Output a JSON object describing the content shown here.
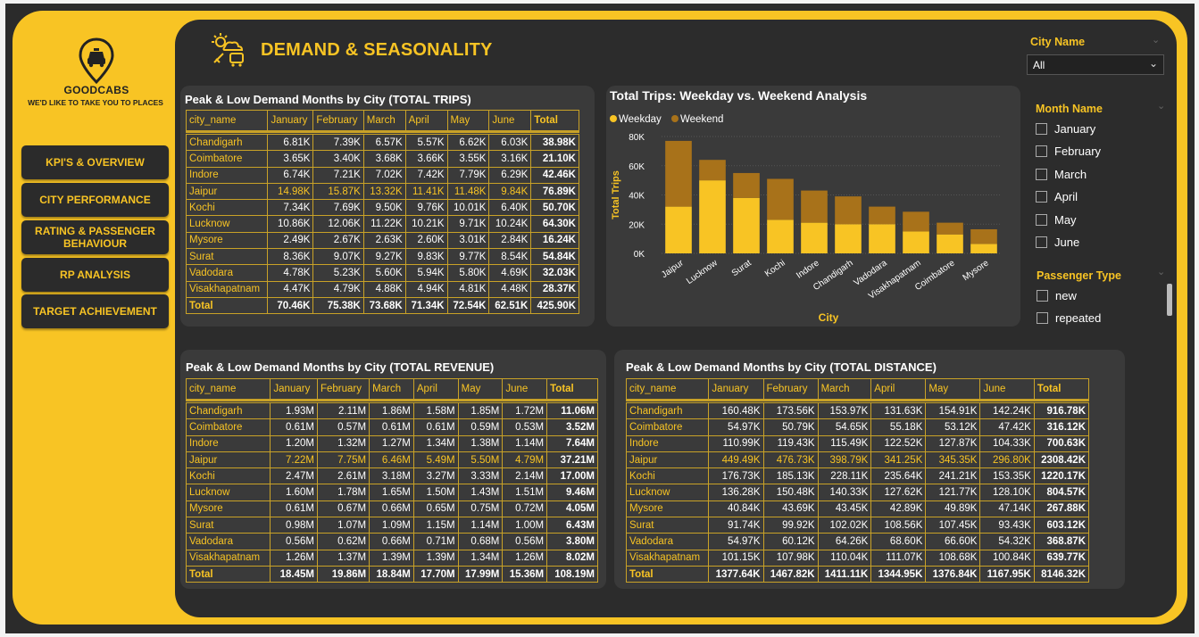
{
  "brand": {
    "name": "GOODCABS",
    "tagline": "WE'D LIKE TO TAKE YOU TO PLACES"
  },
  "nav": [
    "KPI'S & OVERVIEW",
    "CITY PERFORMANCE",
    "RATING & PASSENGER BEHAVIOUR",
    "RP ANALYSIS",
    "TARGET ACHIEVEMENT"
  ],
  "header": {
    "title": "DEMAND & SEASONALITY"
  },
  "colors": {
    "accent": "#f8c424",
    "weekend": "#a8721a",
    "panel": "#3a3a3a"
  },
  "trips": {
    "title": "Peak & Low Demand Months by City (TOTAL TRIPS)",
    "columns": [
      "city_name",
      "January",
      "February",
      "March",
      "April",
      "May",
      "June",
      "Total"
    ],
    "rows": [
      [
        "Chandigarh",
        "6.81K",
        "7.39K",
        "6.57K",
        "5.57K",
        "6.62K",
        "6.03K",
        "38.98K"
      ],
      [
        "Coimbatore",
        "3.65K",
        "3.40K",
        "3.68K",
        "3.66K",
        "3.55K",
        "3.16K",
        "21.10K"
      ],
      [
        "Indore",
        "6.74K",
        "7.21K",
        "7.02K",
        "7.42K",
        "7.79K",
        "6.29K",
        "42.46K"
      ],
      [
        "Jaipur",
        "14.98K",
        "15.87K",
        "13.32K",
        "11.41K",
        "11.48K",
        "9.84K",
        "76.89K"
      ],
      [
        "Kochi",
        "7.34K",
        "7.69K",
        "9.50K",
        "9.76K",
        "10.01K",
        "6.40K",
        "50.70K"
      ],
      [
        "Lucknow",
        "10.86K",
        "12.06K",
        "11.22K",
        "10.21K",
        "9.71K",
        "10.24K",
        "64.30K"
      ],
      [
        "Mysore",
        "2.49K",
        "2.67K",
        "2.63K",
        "2.60K",
        "3.01K",
        "2.84K",
        "16.24K"
      ],
      [
        "Surat",
        "8.36K",
        "9.07K",
        "9.27K",
        "9.83K",
        "9.77K",
        "8.54K",
        "54.84K"
      ],
      [
        "Vadodara",
        "4.78K",
        "5.23K",
        "5.60K",
        "5.94K",
        "5.80K",
        "4.69K",
        "32.03K"
      ],
      [
        "Visakhapatnam",
        "4.47K",
        "4.79K",
        "4.88K",
        "4.94K",
        "4.81K",
        "4.48K",
        "28.37K"
      ]
    ],
    "total": [
      "Total",
      "70.46K",
      "75.38K",
      "73.68K",
      "71.34K",
      "72.54K",
      "62.51K",
      "425.90K"
    ]
  },
  "revenue": {
    "title": "Peak & Low Demand Months by City (TOTAL REVENUE)",
    "columns": [
      "city_name",
      "January",
      "February",
      "March",
      "April",
      "May",
      "June",
      "Total"
    ],
    "rows": [
      [
        "Chandigarh",
        "1.93M",
        "2.11M",
        "1.86M",
        "1.58M",
        "1.85M",
        "1.72M",
        "11.06M"
      ],
      [
        "Coimbatore",
        "0.61M",
        "0.57M",
        "0.61M",
        "0.61M",
        "0.59M",
        "0.53M",
        "3.52M"
      ],
      [
        "Indore",
        "1.20M",
        "1.32M",
        "1.27M",
        "1.34M",
        "1.38M",
        "1.14M",
        "7.64M"
      ],
      [
        "Jaipur",
        "7.22M",
        "7.75M",
        "6.46M",
        "5.49M",
        "5.50M",
        "4.79M",
        "37.21M"
      ],
      [
        "Kochi",
        "2.47M",
        "2.61M",
        "3.18M",
        "3.27M",
        "3.33M",
        "2.14M",
        "17.00M"
      ],
      [
        "Lucknow",
        "1.60M",
        "1.78M",
        "1.65M",
        "1.50M",
        "1.43M",
        "1.51M",
        "9.46M"
      ],
      [
        "Mysore",
        "0.61M",
        "0.67M",
        "0.66M",
        "0.65M",
        "0.75M",
        "0.72M",
        "4.05M"
      ],
      [
        "Surat",
        "0.98M",
        "1.07M",
        "1.09M",
        "1.15M",
        "1.14M",
        "1.00M",
        "6.43M"
      ],
      [
        "Vadodara",
        "0.56M",
        "0.62M",
        "0.66M",
        "0.71M",
        "0.68M",
        "0.56M",
        "3.80M"
      ],
      [
        "Visakhapatnam",
        "1.26M",
        "1.37M",
        "1.39M",
        "1.39M",
        "1.34M",
        "1.26M",
        "8.02M"
      ]
    ],
    "total": [
      "Total",
      "18.45M",
      "19.86M",
      "18.84M",
      "17.70M",
      "17.99M",
      "15.36M",
      "108.19M"
    ]
  },
  "distance": {
    "title": "Peak & Low Demand Months by City (TOTAL DISTANCE)",
    "columns": [
      "city_name",
      "January",
      "February",
      "March",
      "April",
      "May",
      "June",
      "Total"
    ],
    "rows": [
      [
        "Chandigarh",
        "160.48K",
        "173.56K",
        "153.97K",
        "131.63K",
        "154.91K",
        "142.24K",
        "916.78K"
      ],
      [
        "Coimbatore",
        "54.97K",
        "50.79K",
        "54.65K",
        "55.18K",
        "53.12K",
        "47.42K",
        "316.12K"
      ],
      [
        "Indore",
        "110.99K",
        "119.43K",
        "115.49K",
        "122.52K",
        "127.87K",
        "104.33K",
        "700.63K"
      ],
      [
        "Jaipur",
        "449.49K",
        "476.73K",
        "398.79K",
        "341.25K",
        "345.35K",
        "296.80K",
        "2308.42K"
      ],
      [
        "Kochi",
        "176.73K",
        "185.13K",
        "228.11K",
        "235.64K",
        "241.21K",
        "153.35K",
        "1220.17K"
      ],
      [
        "Lucknow",
        "136.28K",
        "150.48K",
        "140.33K",
        "127.62K",
        "121.77K",
        "128.10K",
        "804.57K"
      ],
      [
        "Mysore",
        "40.84K",
        "43.69K",
        "43.45K",
        "42.89K",
        "49.89K",
        "47.14K",
        "267.88K"
      ],
      [
        "Surat",
        "91.74K",
        "99.92K",
        "102.02K",
        "108.56K",
        "107.45K",
        "93.43K",
        "603.12K"
      ],
      [
        "Vadodara",
        "54.97K",
        "60.12K",
        "64.26K",
        "68.60K",
        "66.60K",
        "54.32K",
        "368.87K"
      ],
      [
        "Visakhapatnam",
        "101.15K",
        "107.98K",
        "110.04K",
        "111.07K",
        "108.68K",
        "100.84K",
        "639.77K"
      ]
    ],
    "total": [
      "Total",
      "1377.64K",
      "1467.82K",
      "1411.11K",
      "1344.95K",
      "1376.84K",
      "1167.95K",
      "8146.32K"
    ]
  },
  "chart_data": {
    "type": "bar",
    "stacked": true,
    "title": "Total Trips: Weekday vs. Weekend Analysis",
    "xlabel": "City",
    "ylabel": "Total Trips",
    "categories": [
      "Jaipur",
      "Lucknow",
      "Surat",
      "Kochi",
      "Indore",
      "Chandigarh",
      "Vadodara",
      "Visakhapatnam",
      "Coimbatore",
      "Mysore"
    ],
    "series": [
      {
        "name": "Weekday",
        "color": "#f8c424",
        "values": [
          32000,
          50000,
          38000,
          23000,
          21000,
          20000,
          20000,
          15000,
          13000,
          6500
        ]
      },
      {
        "name": "Weekend",
        "color": "#a8721a",
        "values": [
          45000,
          14000,
          17000,
          28000,
          22000,
          19000,
          12000,
          13500,
          8000,
          10000
        ]
      }
    ],
    "yticks": [
      "0K",
      "20K",
      "40K",
      "60K",
      "80K"
    ],
    "ylim": [
      0,
      80000
    ],
    "legend": "top-left",
    "grid": true
  },
  "filters": {
    "city": {
      "label": "City Name",
      "value": "All"
    },
    "month": {
      "label": "Month Name",
      "options": [
        "January",
        "February",
        "March",
        "April",
        "May",
        "June"
      ]
    },
    "passenger": {
      "label": "Passenger Type",
      "options": [
        "new",
        "repeated"
      ]
    }
  }
}
